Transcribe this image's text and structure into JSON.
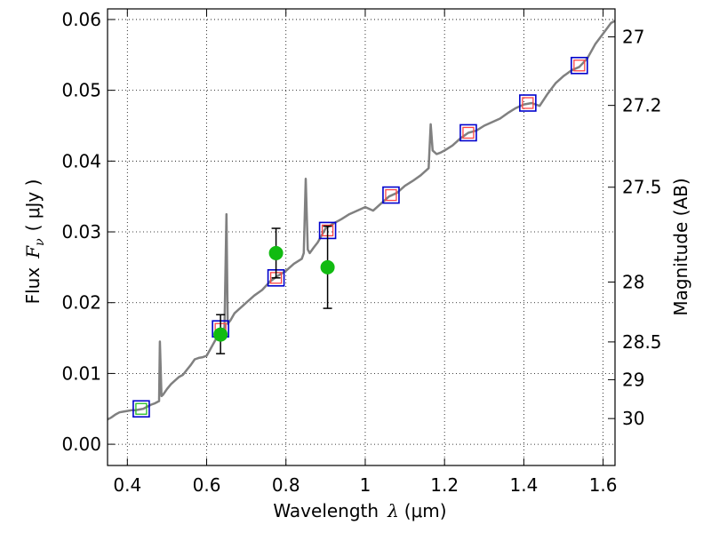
{
  "chart_data": {
    "type": "line",
    "xlabel": "Wavelength",
    "xlabel_symbol": "λ",
    "xlabel_unit": "(μm)",
    "ylabel": "Flux",
    "ylabel_symbol": "F",
    "ylabel_subscript": "ν",
    "ylabel_unit": "( μJy )",
    "y2label": "Magnitude (AB)",
    "xlim": [
      0.35,
      1.63
    ],
    "ylim": [
      -0.003,
      0.0615
    ],
    "grid": true,
    "x_ticks": [
      0.4,
      0.6,
      0.8,
      1.0,
      1.2,
      1.4,
      1.6
    ],
    "x_tick_labels": [
      "0.4",
      "0.6",
      "0.8",
      "1",
      "1.2",
      "1.4",
      "1.6"
    ],
    "y_ticks": [
      0.0,
      0.01,
      0.02,
      0.03,
      0.04,
      0.05,
      0.06
    ],
    "y_tick_labels": [
      "0.00",
      "0.01",
      "0.02",
      "0.03",
      "0.04",
      "0.05",
      "0.06"
    ],
    "mag_ticks": [
      27,
      27.2,
      27.5,
      28,
      28.5,
      29,
      30
    ],
    "mag_tick_labels": [
      "27",
      "27.2",
      "27.5",
      "28",
      "28.5",
      "29",
      "30"
    ],
    "colors": {
      "model_spectrum": "#808080",
      "model_photometry_box": "#0000cc",
      "model_photometry_inner_red": "#ff4444",
      "model_photometry_inner_green": "#22bb22",
      "observed_points": "#11bb11",
      "errorbar": "#000000"
    },
    "model_spectrum": [
      [
        0.35,
        0.0035
      ],
      [
        0.36,
        0.0038
      ],
      [
        0.37,
        0.0042
      ],
      [
        0.38,
        0.0045
      ],
      [
        0.39,
        0.0046
      ],
      [
        0.4,
        0.0047
      ],
      [
        0.41,
        0.0048
      ],
      [
        0.42,
        0.0048
      ],
      [
        0.43,
        0.0049
      ],
      [
        0.44,
        0.005
      ],
      [
        0.45,
        0.0053
      ],
      [
        0.46,
        0.0056
      ],
      [
        0.47,
        0.0058
      ],
      [
        0.48,
        0.0061
      ],
      [
        0.482,
        0.0145
      ],
      [
        0.486,
        0.0068
      ],
      [
        0.49,
        0.007
      ],
      [
        0.5,
        0.0078
      ],
      [
        0.51,
        0.0085
      ],
      [
        0.52,
        0.009
      ],
      [
        0.53,
        0.0095
      ],
      [
        0.54,
        0.0098
      ],
      [
        0.55,
        0.0105
      ],
      [
        0.56,
        0.0112
      ],
      [
        0.57,
        0.012
      ],
      [
        0.58,
        0.0122
      ],
      [
        0.59,
        0.0123
      ],
      [
        0.6,
        0.0125
      ],
      [
        0.61,
        0.0135
      ],
      [
        0.62,
        0.0145
      ],
      [
        0.63,
        0.0155
      ],
      [
        0.64,
        0.016
      ],
      [
        0.645,
        0.0165
      ],
      [
        0.65,
        0.0325
      ],
      [
        0.653,
        0.017
      ],
      [
        0.66,
        0.0175
      ],
      [
        0.67,
        0.0185
      ],
      [
        0.68,
        0.019
      ],
      [
        0.69,
        0.0195
      ],
      [
        0.7,
        0.02
      ],
      [
        0.72,
        0.021
      ],
      [
        0.74,
        0.0218
      ],
      [
        0.76,
        0.023
      ],
      [
        0.78,
        0.0238
      ],
      [
        0.8,
        0.0245
      ],
      [
        0.82,
        0.0255
      ],
      [
        0.84,
        0.0262
      ],
      [
        0.845,
        0.027
      ],
      [
        0.85,
        0.0375
      ],
      [
        0.855,
        0.0275
      ],
      [
        0.86,
        0.027
      ],
      [
        0.87,
        0.0278
      ],
      [
        0.88,
        0.0285
      ],
      [
        0.89,
        0.0295
      ],
      [
        0.9,
        0.0305
      ],
      [
        0.92,
        0.0312
      ],
      [
        0.94,
        0.0318
      ],
      [
        0.96,
        0.0325
      ],
      [
        0.98,
        0.033
      ],
      [
        1.0,
        0.0335
      ],
      [
        1.02,
        0.033
      ],
      [
        1.04,
        0.034
      ],
      [
        1.06,
        0.035
      ],
      [
        1.08,
        0.0355
      ],
      [
        1.1,
        0.0365
      ],
      [
        1.12,
        0.0372
      ],
      [
        1.14,
        0.038
      ],
      [
        1.16,
        0.039
      ],
      [
        1.165,
        0.0452
      ],
      [
        1.17,
        0.0415
      ],
      [
        1.18,
        0.041
      ],
      [
        1.19,
        0.0412
      ],
      [
        1.2,
        0.0415
      ],
      [
        1.22,
        0.0422
      ],
      [
        1.24,
        0.0432
      ],
      [
        1.26,
        0.044
      ],
      [
        1.28,
        0.0443
      ],
      [
        1.3,
        0.045
      ],
      [
        1.32,
        0.0455
      ],
      [
        1.34,
        0.046
      ],
      [
        1.36,
        0.0468
      ],
      [
        1.38,
        0.0475
      ],
      [
        1.4,
        0.048
      ],
      [
        1.42,
        0.0482
      ],
      [
        1.44,
        0.0478
      ],
      [
        1.46,
        0.0495
      ],
      [
        1.48,
        0.051
      ],
      [
        1.5,
        0.052
      ],
      [
        1.52,
        0.0528
      ],
      [
        1.54,
        0.0533
      ],
      [
        1.56,
        0.0545
      ],
      [
        1.58,
        0.0565
      ],
      [
        1.6,
        0.058
      ],
      [
        1.62,
        0.0595
      ],
      [
        1.63,
        0.0598
      ]
    ],
    "model_photometry": [
      {
        "x": 0.435,
        "y": 0.005,
        "inner": "green"
      },
      {
        "x": 0.635,
        "y": 0.0163,
        "inner": "red"
      },
      {
        "x": 0.775,
        "y": 0.0235,
        "inner": "red"
      },
      {
        "x": 0.905,
        "y": 0.0302,
        "inner": "red"
      },
      {
        "x": 1.065,
        "y": 0.0352,
        "inner": "red"
      },
      {
        "x": 1.26,
        "y": 0.044,
        "inner": "red"
      },
      {
        "x": 1.41,
        "y": 0.0482,
        "inner": "red"
      },
      {
        "x": 1.54,
        "y": 0.0535,
        "inner": "red"
      }
    ],
    "observed_points": [
      {
        "x": 0.635,
        "y": 0.0155,
        "ylow": 0.0128,
        "yhigh": 0.0183
      },
      {
        "x": 0.775,
        "y": 0.027,
        "ylow": 0.0235,
        "yhigh": 0.0305
      },
      {
        "x": 0.905,
        "y": 0.025,
        "ylow": 0.0192,
        "yhigh": 0.0308
      }
    ]
  }
}
